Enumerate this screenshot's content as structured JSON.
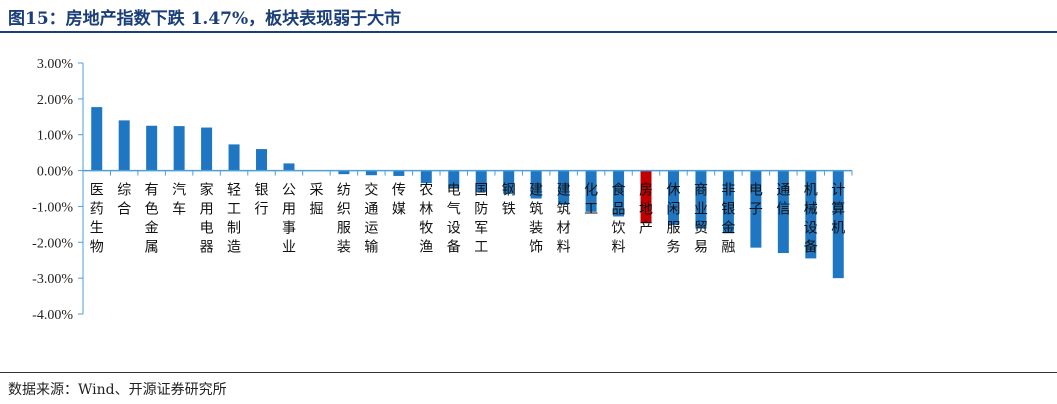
{
  "figure": {
    "title": "图15：房地产指数下跌 1.47%，板块表现弱于大市",
    "source": "数据来源：Wind、开源证券研究所"
  },
  "colors": {
    "bar": "#1f77c4",
    "highlight_bar": "#c00000",
    "title": "#1a3e7a",
    "axis": "#4f9fd6"
  },
  "chart_data": {
    "type": "bar",
    "title": "",
    "xlabel": "",
    "ylabel": "",
    "ylim": [
      -4,
      3
    ],
    "yticks": [
      3,
      2,
      1,
      0,
      -1,
      -2,
      -3,
      -4
    ],
    "ytick_labels": [
      "3.00%",
      "2.00%",
      "1.00%",
      "0.00%",
      "-1.00%",
      "-2.00%",
      "-3.00%",
      "-4.00%"
    ],
    "grid": false,
    "legend": "none",
    "highlight_category": "房地产",
    "categories": [
      "医药生物",
      "综合",
      "有色金属",
      "汽车",
      "家用电器",
      "轻工制造",
      "银行",
      "公用事业",
      "采掘",
      "纺织服装",
      "交通运输",
      "传媒",
      "农林牧渔",
      "电气设备",
      "国防军工",
      "钢铁",
      "建筑装饰",
      "建筑材料",
      "化工",
      "食品饮料",
      "房地产",
      "休闲服务",
      "商业贸易",
      "非银金融",
      "电子",
      "通信",
      "机械设备",
      "计算机"
    ],
    "values": [
      1.77,
      1.4,
      1.25,
      1.24,
      1.2,
      0.73,
      0.6,
      0.2,
      0.0,
      -0.1,
      -0.13,
      -0.15,
      -0.35,
      -0.5,
      -0.6,
      -0.65,
      -0.78,
      -0.95,
      -1.15,
      -1.28,
      -1.47,
      -1.52,
      -1.62,
      -1.75,
      -2.15,
      -2.3,
      -2.45,
      -3.0
    ]
  }
}
